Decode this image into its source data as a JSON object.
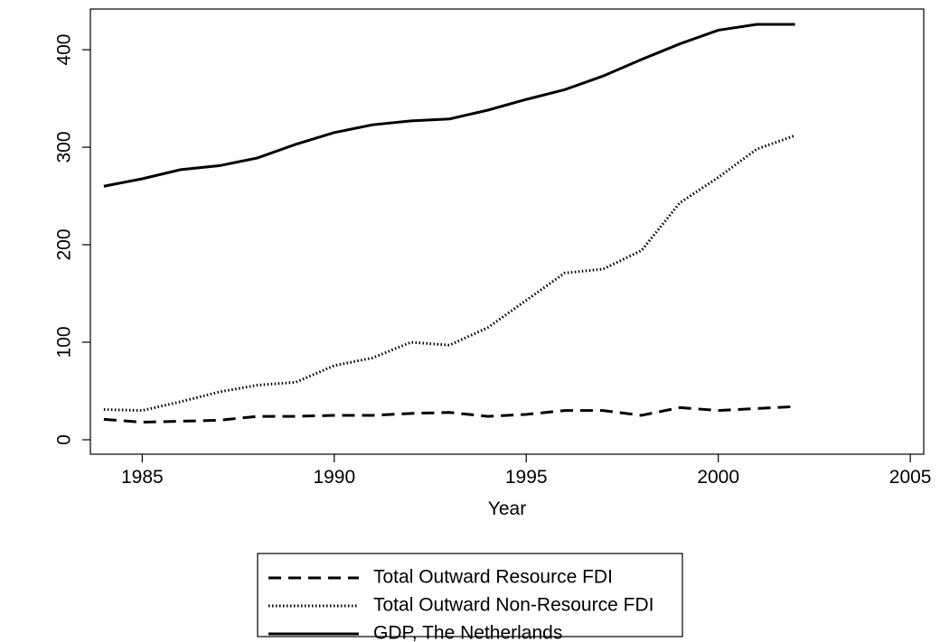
{
  "chart_data": {
    "type": "line",
    "x_label": "Year",
    "x": [
      1984,
      1985,
      1986,
      1987,
      1988,
      1989,
      1990,
      1991,
      1992,
      1993,
      1994,
      1995,
      1996,
      1997,
      1998,
      1999,
      2000,
      2001,
      2002
    ],
    "series": [
      {
        "name": "Total Outward Resource FDI",
        "color": "#000000",
        "dash": "dashed",
        "values": [
          21,
          18,
          19,
          20,
          24,
          24,
          25,
          25,
          27,
          28,
          24,
          26,
          30,
          30,
          25,
          33,
          30,
          32,
          34
        ]
      },
      {
        "name": "Total Outward Non-Resource FDI",
        "color": "#000000",
        "dash": "dotted",
        "values": [
          31,
          30,
          39,
          49,
          56,
          59,
          76,
          84,
          100,
          97,
          115,
          143,
          171,
          175,
          194,
          243,
          269,
          298,
          312
        ]
      },
      {
        "name": "GDP, The Netherlands",
        "color": "#000000",
        "dash": "solid",
        "values": [
          260,
          267.6,
          277,
          281,
          289,
          303,
          315,
          323,
          327,
          329,
          338,
          349,
          359,
          373,
          390,
          406,
          420,
          426,
          426
        ]
      }
    ],
    "xlim": [
      1983.65,
      2005.35
    ],
    "xticks": [
      1985,
      1990,
      1995,
      2000,
      2005
    ],
    "ylim": [
      -14.8,
      441.7
    ],
    "yticks": [
      0,
      100,
      200,
      300,
      400
    ],
    "legend": "bottom"
  }
}
